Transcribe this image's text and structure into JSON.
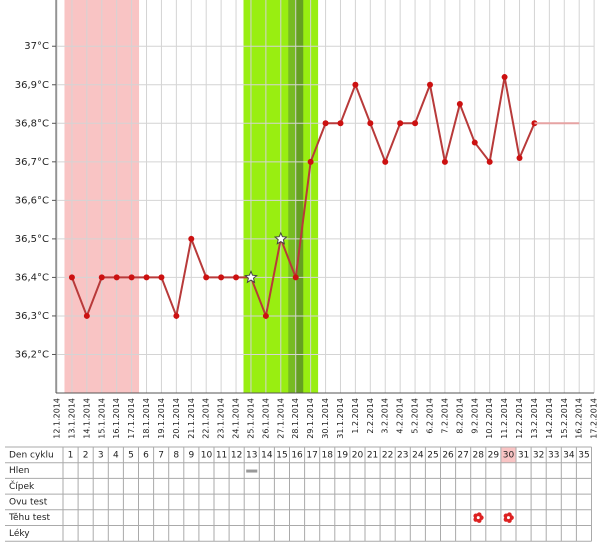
{
  "chart_data": {
    "type": "line",
    "categories": [
      "12.1.2014",
      "13.1.2014",
      "14.1.2014",
      "15.1.2014",
      "16.1.2014",
      "17.1.2014",
      "18.1.2014",
      "19.1.2014",
      "20.1.2014",
      "21.1.2014",
      "22.1.2014",
      "23.1.2014",
      "24.1.2014",
      "25.1.2014",
      "26.1.2014",
      "27.1.2014",
      "28.1.2014",
      "29.1.2014",
      "30.1.2014",
      "31.1.2014",
      "1.2.2014",
      "2.2.2014",
      "3.2.2014",
      "4.2.2014",
      "5.2.2014",
      "6.2.2014",
      "7.2.2014",
      "8.2.2014",
      "9.2.2014",
      "10.2.2014",
      "11.2.2014",
      "12.2.2014",
      "13.2.2014",
      "14.2.2014",
      "15.2.2014",
      "16.2.2014",
      "17.2.2014"
    ],
    "series": [
      {
        "color": "#b83a3a",
        "values": [
          null,
          36.4,
          36.3,
          36.4,
          36.4,
          36.4,
          36.4,
          36.4,
          36.3,
          36.5,
          36.4,
          36.4,
          36.4,
          36.4,
          36.3,
          36.5,
          36.4,
          36.7,
          36.8,
          36.8,
          36.9,
          36.8,
          36.7,
          36.8,
          36.8,
          36.9,
          36.7,
          36.85,
          36.75,
          36.7,
          36.92,
          36.71,
          36.8,
          null,
          null,
          null,
          null
        ],
        "markers": [
          null,
          "circle",
          "circle",
          "circle",
          "circle",
          "circle",
          "circle",
          "circle",
          "circle",
          "circle",
          "circle",
          "circle",
          "circle",
          "star",
          "circle",
          "star",
          "circle",
          "circle",
          "circle",
          "circle",
          "circle",
          "circle",
          "circle",
          "circle",
          "circle",
          "circle",
          "circle",
          "circle",
          "circle",
          "circle",
          "circle",
          "circle",
          "circle",
          null,
          null,
          null,
          null
        ]
      },
      {
        "color": "#e6a3a3",
        "values": [
          null,
          null,
          null,
          null,
          null,
          null,
          null,
          null,
          null,
          null,
          null,
          null,
          null,
          null,
          null,
          null,
          null,
          null,
          null,
          null,
          null,
          null,
          null,
          null,
          null,
          null,
          null,
          null,
          null,
          null,
          null,
          null,
          36.8,
          36.8,
          36.8,
          36.8,
          null
        ]
      }
    ],
    "ylim": [
      36.1,
      37.12
    ],
    "yticks": [
      {
        "value": 36.2,
        "label": "36,2°C"
      },
      {
        "value": 36.3,
        "label": "36,3°C"
      },
      {
        "value": 36.4,
        "label": "36,4°C"
      },
      {
        "value": 36.5,
        "label": "36,5°C"
      },
      {
        "value": 36.6,
        "label": "36,6°C"
      },
      {
        "value": 36.7,
        "label": "36,7°C"
      },
      {
        "value": 36.8,
        "label": "36,8°C"
      },
      {
        "value": 36.9,
        "label": "36,9°C"
      },
      {
        "value": 37,
        "label": "37°C"
      }
    ],
    "grid": true
  },
  "table": {
    "header": "Den cyklu",
    "days": [
      "1",
      "2",
      "3",
      "4",
      "5",
      "6",
      "7",
      "8",
      "9",
      "10",
      "11",
      "12",
      "13",
      "14",
      "15",
      "16",
      "17",
      "18",
      "19",
      "20",
      "21",
      "22",
      "23",
      "24",
      "25",
      "26",
      "27",
      "28",
      "29",
      "30",
      "31",
      "32",
      "33",
      "34",
      "35"
    ],
    "rows": [
      "Hlen",
      "Čípek",
      "Ovu test",
      "Těhu test",
      "Léky"
    ]
  }
}
